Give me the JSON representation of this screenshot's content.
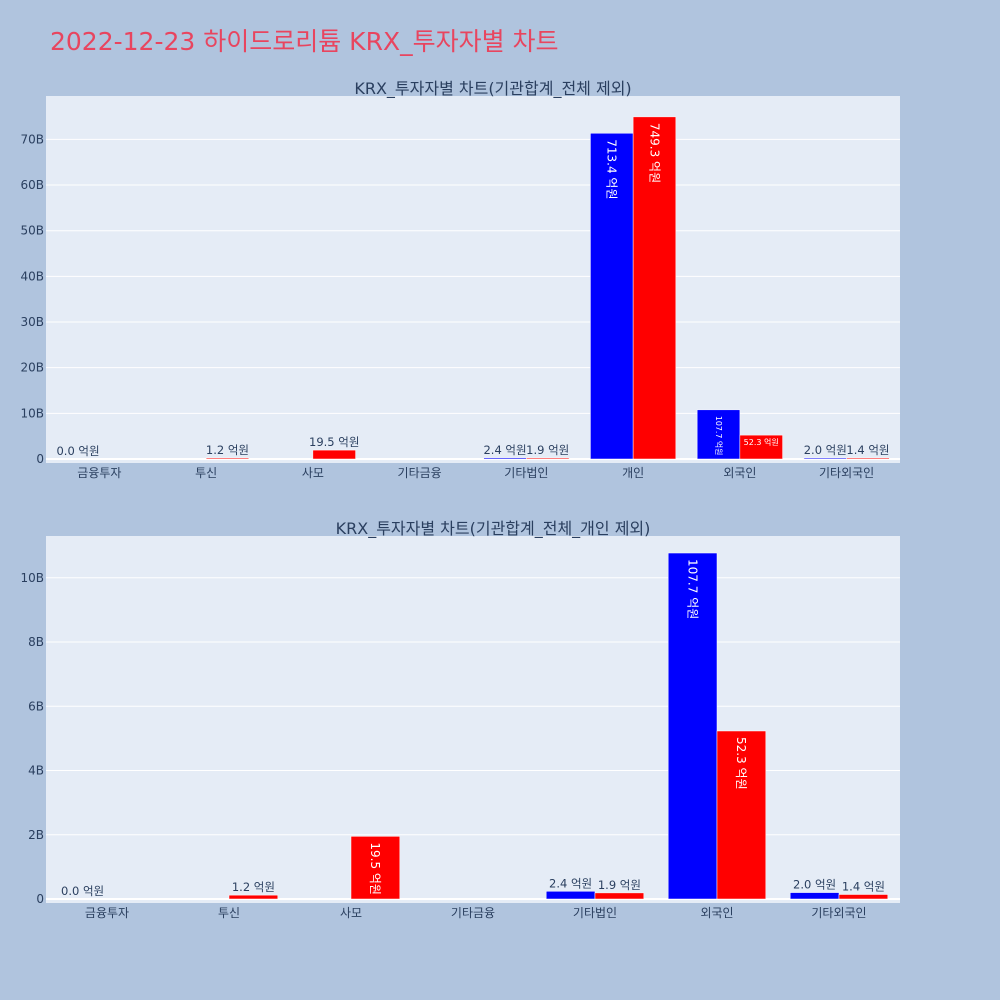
{
  "page_title": "2022-12-23 하이드로리튬 KRX_투자자별 차트",
  "colors": {
    "background": "#b0c4de",
    "plot_bg": "#e5ecf6",
    "title": "#e8455f",
    "series_buy": "#0000ff",
    "series_sell": "#ff0000"
  },
  "chart_data": [
    {
      "type": "bar",
      "title": "KRX_투자자별 차트(기관합계_전체 제외)",
      "categories": [
        "금융투자",
        "투신",
        "사모",
        "기타금융",
        "기타법인",
        "개인",
        "외국인",
        "기타외국인"
      ],
      "series": [
        {
          "values": [
            0.0,
            0.0,
            0.0,
            0.0,
            0.24,
            71.34,
            10.77,
            0.2
          ],
          "labels": [
            "0.0 억원",
            "",
            "",
            "",
            "2.4 억원",
            "713.4 억원",
            "107.7 억원",
            "2.0 억원"
          ]
        },
        {
          "values": [
            0.0,
            0.12,
            1.95,
            0.0,
            0.19,
            74.93,
            5.23,
            0.14
          ],
          "labels": [
            "",
            "1.2 억원",
            "19.5 억원",
            "",
            "1.9 억원",
            "749.3 억원",
            "52.3 억원",
            "1.4 억원"
          ]
        }
      ],
      "y_unit": "B",
      "yticks": [
        0,
        10,
        20,
        30,
        40,
        50,
        60,
        70
      ],
      "ytick_labels": [
        "0",
        "10B",
        "20B",
        "30B",
        "40B",
        "50B",
        "60B",
        "70B"
      ],
      "ylim": [
        0,
        79.5
      ],
      "grid": true
    },
    {
      "type": "bar",
      "title": "KRX_투자자별 차트(기관합계_전체_개인 제외)",
      "categories": [
        "금융투자",
        "투신",
        "사모",
        "기타금융",
        "기타법인",
        "외국인",
        "기타외국인"
      ],
      "series": [
        {
          "values": [
            0.0,
            0.0,
            0.0,
            0.0,
            0.24,
            10.77,
            0.2
          ],
          "labels": [
            "0.0 억원",
            "",
            "",
            "",
            "2.4 억원",
            "107.7 억원",
            "2.0 억원"
          ]
        },
        {
          "values": [
            0.0,
            0.12,
            1.95,
            0.0,
            0.19,
            5.23,
            0.14
          ],
          "labels": [
            "",
            "1.2 억원",
            "19.5 억원",
            "",
            "1.9 억원",
            "52.3 억원",
            "1.4 억원"
          ]
        }
      ],
      "y_unit": "B",
      "yticks": [
        0,
        2,
        4,
        6,
        8,
        10
      ],
      "ytick_labels": [
        "0",
        "2B",
        "4B",
        "6B",
        "8B",
        "10B"
      ],
      "ylim": [
        0,
        11.3
      ],
      "grid": true
    }
  ]
}
